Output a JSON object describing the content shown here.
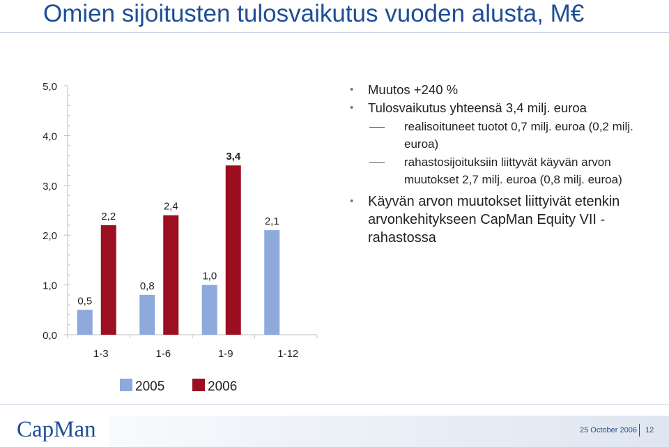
{
  "slide": {
    "title": "Omien sijoitusten tulosvaikutus vuoden alusta, M€",
    "date": "25 October 2006",
    "page_number": "12",
    "logo_text": "CapMan"
  },
  "bullets": [
    {
      "level": 1,
      "text": "Muutos +240 %"
    },
    {
      "level": 1,
      "text": "Tulosvaikutus yhteensä 3,4 milj. euroa"
    },
    {
      "level": 2,
      "text": "realisoituneet tuotot 0,7 milj. euroa (0,2 milj. euroa)"
    },
    {
      "level": 2,
      "text": "rahastosijoituksiin liittyvät käyvän arvon muutokset 2,7 milj. euroa (0,8 milj. euroa)"
    },
    {
      "level": 1,
      "text": "Käyvän arvon muutokset liittyivät etenkin arvonkehitykseen CapMan Equity VII -rahastossa",
      "emphasis": true
    }
  ],
  "colors": {
    "series_2005": "#8ea9db",
    "series_2006": "#9b0f20",
    "title": "#1f4e96",
    "footer_text": "#1f4e96"
  },
  "chart_data": {
    "type": "bar",
    "categories": [
      "1-3",
      "1-6",
      "1-9",
      "1-12"
    ],
    "series": [
      {
        "name": "2005",
        "values": [
          0.5,
          0.8,
          1.0,
          2.1
        ],
        "labels": [
          "0,5",
          "0,8",
          "1,0",
          "2,1"
        ],
        "color": "#8ea9db"
      },
      {
        "name": "2006",
        "values": [
          2.2,
          2.4,
          3.4,
          null
        ],
        "labels": [
          "2,2",
          "2,4",
          "3,4",
          ""
        ],
        "color": "#9b0f20"
      }
    ],
    "highlight_label": "3,4",
    "ylim": [
      0,
      5
    ],
    "yticks": [
      0,
      1,
      2,
      3,
      4,
      5
    ],
    "ytick_labels": [
      "0,0",
      "1,0",
      "2,0",
      "3,0",
      "4,0",
      "5,0"
    ],
    "legend_position": "bottom",
    "grid": false
  }
}
